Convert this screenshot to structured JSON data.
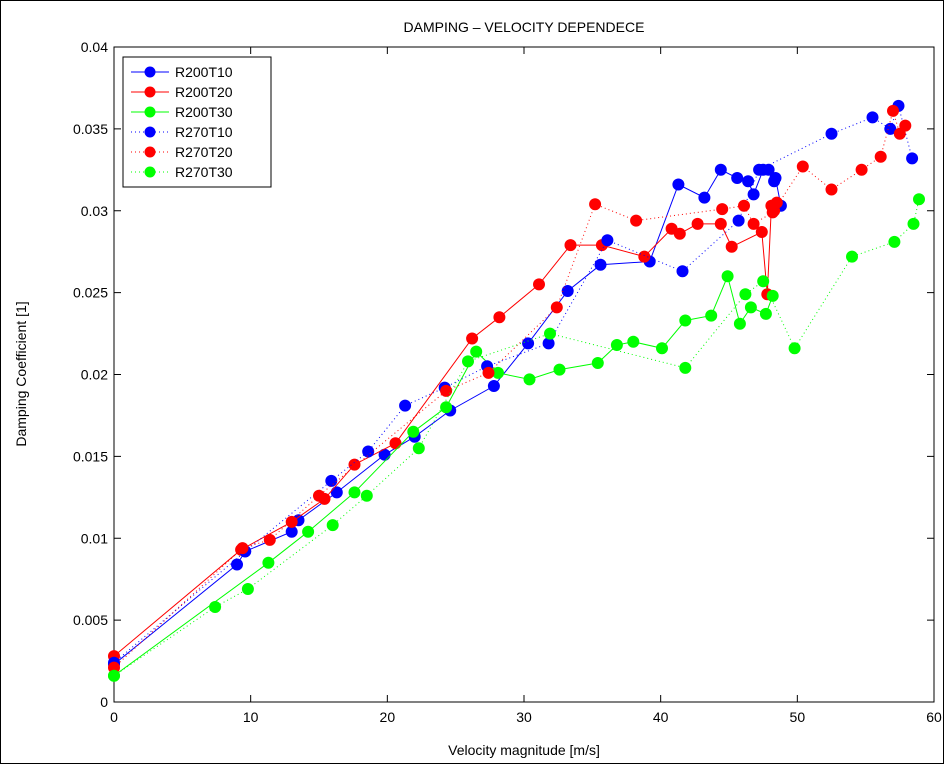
{
  "chart_data": {
    "type": "line",
    "title": "DAMPING – VELOCITY DEPENDECE",
    "xlabel": "Velocity magnitude [m/s]",
    "ylabel": "Damping Coefficient [1]",
    "xlim": [
      0,
      60
    ],
    "ylim": [
      0,
      0.04
    ],
    "xticks": [
      0,
      10,
      20,
      30,
      40,
      50,
      60
    ],
    "xtick_labels": [
      "0",
      "10",
      "20",
      "30",
      "40",
      "50",
      "60"
    ],
    "yticks": [
      0,
      0.005,
      0.01,
      0.015,
      0.02,
      0.025,
      0.03,
      0.035,
      0.04
    ],
    "ytick_labels": [
      "0",
      "0.005",
      "0.01",
      "0.015",
      "0.02",
      "0.025",
      "0.03",
      "0.035",
      "0.04"
    ],
    "grid": false,
    "legend_position": "top-left",
    "series": [
      {
        "name": "R200T10",
        "color": "#0000ff",
        "line_style": "solid",
        "points": [
          [
            0,
            0.0023
          ],
          [
            9.0,
            0.0084
          ],
          [
            9.6,
            0.0092
          ],
          [
            13.0,
            0.0104
          ],
          [
            13.5,
            0.0111
          ],
          [
            16.3,
            0.0128
          ],
          [
            19.8,
            0.0151
          ],
          [
            22.0,
            0.0162
          ],
          [
            24.6,
            0.0178
          ],
          [
            27.8,
            0.0193
          ],
          [
            30.3,
            0.0219
          ],
          [
            33.2,
            0.0251
          ],
          [
            35.6,
            0.0267
          ],
          [
            39.2,
            0.0269
          ],
          [
            41.3,
            0.0316
          ],
          [
            43.2,
            0.0308
          ],
          [
            44.4,
            0.0325
          ],
          [
            45.6,
            0.032
          ],
          [
            46.4,
            0.0318
          ],
          [
            46.8,
            0.031
          ],
          [
            47.5,
            0.0325
          ],
          [
            47.9,
            0.0325
          ],
          [
            48.3,
            0.0318
          ],
          [
            48.4,
            0.032
          ],
          [
            48.8,
            0.0303
          ]
        ]
      },
      {
        "name": "R200T20",
        "color": "#ff0000",
        "line_style": "solid",
        "points": [
          [
            0,
            0.0028
          ],
          [
            9.3,
            0.0093
          ],
          [
            13.0,
            0.011
          ],
          [
            15.4,
            0.0124
          ],
          [
            17.6,
            0.0145
          ],
          [
            20.6,
            0.0158
          ],
          [
            26.2,
            0.0222
          ],
          [
            28.2,
            0.0235
          ],
          [
            31.1,
            0.0255
          ],
          [
            33.4,
            0.0279
          ],
          [
            35.7,
            0.0279
          ],
          [
            38.8,
            0.0272
          ],
          [
            40.8,
            0.0289
          ],
          [
            41.4,
            0.0286
          ],
          [
            42.7,
            0.0292
          ],
          [
            44.4,
            0.0292
          ],
          [
            45.2,
            0.0278
          ],
          [
            47.4,
            0.0287
          ],
          [
            47.8,
            0.0249
          ],
          [
            48.1,
            0.0303
          ],
          [
            48.3,
            0.03
          ],
          [
            48.5,
            0.0305
          ]
        ]
      },
      {
        "name": "R200T30",
        "color": "#00ff00",
        "line_style": "solid",
        "points": [
          [
            0,
            0.0016
          ],
          [
            11.3,
            0.0085
          ],
          [
            14.2,
            0.0104
          ],
          [
            17.6,
            0.0128
          ],
          [
            21.9,
            0.0165
          ],
          [
            24.3,
            0.018
          ],
          [
            26.5,
            0.0214
          ],
          [
            28.1,
            0.0201
          ],
          [
            30.4,
            0.0197
          ],
          [
            32.6,
            0.0203
          ],
          [
            35.4,
            0.0207
          ],
          [
            36.8,
            0.0218
          ],
          [
            38.0,
            0.022
          ],
          [
            40.1,
            0.0216
          ],
          [
            41.8,
            0.0233
          ],
          [
            43.7,
            0.0236
          ],
          [
            44.9,
            0.026
          ],
          [
            45.8,
            0.0231
          ],
          [
            46.6,
            0.0241
          ],
          [
            47.7,
            0.0237
          ],
          [
            48.2,
            0.0248
          ]
        ]
      },
      {
        "name": "R270T10",
        "color": "#0000ff",
        "line_style": "dotted",
        "points": [
          [
            0,
            0.0024
          ],
          [
            9.6,
            0.0092
          ],
          [
            15.9,
            0.0135
          ],
          [
            18.6,
            0.0153
          ],
          [
            21.3,
            0.0181
          ],
          [
            24.2,
            0.0192
          ],
          [
            27.3,
            0.0205
          ],
          [
            31.8,
            0.0219
          ],
          [
            36.1,
            0.0282
          ],
          [
            41.6,
            0.0263
          ],
          [
            45.7,
            0.0294
          ],
          [
            47.2,
            0.0325
          ],
          [
            52.5,
            0.0347
          ],
          [
            55.5,
            0.0357
          ],
          [
            56.8,
            0.035
          ],
          [
            57.4,
            0.0364
          ],
          [
            58.4,
            0.0332
          ]
        ]
      },
      {
        "name": "R270T20",
        "color": "#ff0000",
        "line_style": "dotted",
        "points": [
          [
            0,
            0.0021
          ],
          [
            9.4,
            0.0094
          ],
          [
            11.4,
            0.0099
          ],
          [
            15.0,
            0.0126
          ],
          [
            24.3,
            0.019
          ],
          [
            27.4,
            0.0201
          ],
          [
            32.4,
            0.0241
          ],
          [
            35.2,
            0.0304
          ],
          [
            38.2,
            0.0294
          ],
          [
            44.5,
            0.0301
          ],
          [
            46.1,
            0.0303
          ],
          [
            46.8,
            0.0292
          ],
          [
            48.2,
            0.0299
          ],
          [
            50.4,
            0.0327
          ],
          [
            52.5,
            0.0313
          ],
          [
            54.7,
            0.0325
          ],
          [
            56.1,
            0.0333
          ],
          [
            57.0,
            0.0361
          ],
          [
            57.5,
            0.0347
          ],
          [
            57.9,
            0.0352
          ]
        ]
      },
      {
        "name": "R270T30",
        "color": "#00ff00",
        "line_style": "dotted",
        "points": [
          [
            0,
            0.0016
          ],
          [
            7.4,
            0.0058
          ],
          [
            9.8,
            0.0069
          ],
          [
            16.0,
            0.0108
          ],
          [
            18.5,
            0.0126
          ],
          [
            22.3,
            0.0155
          ],
          [
            25.9,
            0.0208
          ],
          [
            31.9,
            0.0225
          ],
          [
            41.8,
            0.0204
          ],
          [
            46.2,
            0.0249
          ],
          [
            47.5,
            0.0257
          ],
          [
            49.8,
            0.0216
          ],
          [
            54.0,
            0.0272
          ],
          [
            57.1,
            0.0281
          ],
          [
            58.5,
            0.0292
          ],
          [
            58.9,
            0.0307
          ]
        ]
      }
    ]
  }
}
